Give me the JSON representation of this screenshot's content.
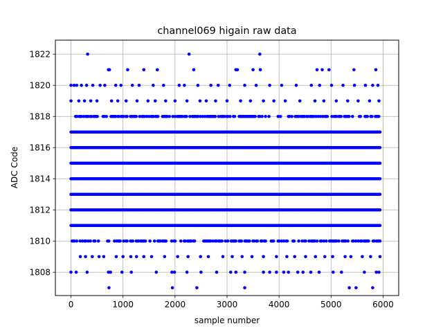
{
  "chart_data": {
    "type": "scatter",
    "title": "channel069 higain raw data",
    "xlabel": "sample number",
    "ylabel": "ADC Code",
    "xlim": [
      -300,
      6300
    ],
    "ylim": [
      1806.5,
      1822.9
    ],
    "xticks": [
      0,
      1000,
      2000,
      3000,
      4000,
      5000,
      6000
    ],
    "yticks": [
      1808,
      1810,
      1812,
      1814,
      1816,
      1818,
      1820,
      1822
    ],
    "grid": true,
    "marker_color": "#0000ff",
    "series": [
      {
        "dense_rows": [
          1811,
          1812,
          1813,
          1814,
          1815,
          1816,
          1817
        ],
        "dense_x_range": [
          0,
          5940
        ],
        "semi_dense_rows": [
          {
            "y": 1810,
            "density": 0.55
          },
          {
            "y": 1818,
            "density": 0.6
          }
        ],
        "sparse_points": [
          [
            320,
            1822
          ],
          [
            2270,
            1822
          ],
          [
            3630,
            1822
          ],
          [
            720,
            1821
          ],
          [
            740,
            1821
          ],
          [
            1090,
            1821
          ],
          [
            1400,
            1821
          ],
          [
            1660,
            1821
          ],
          [
            2360,
            1821
          ],
          [
            3170,
            1821
          ],
          [
            3200,
            1821
          ],
          [
            3500,
            1821
          ],
          [
            3640,
            1821
          ],
          [
            4730,
            1821
          ],
          [
            4830,
            1821
          ],
          [
            4960,
            1821
          ],
          [
            5440,
            1821
          ],
          [
            5860,
            1821
          ],
          [
            0,
            1820
          ],
          [
            60,
            1820
          ],
          [
            110,
            1820
          ],
          [
            200,
            1820
          ],
          [
            300,
            1820
          ],
          [
            420,
            1820
          ],
          [
            560,
            1820
          ],
          [
            650,
            1820
          ],
          [
            860,
            1820
          ],
          [
            960,
            1820
          ],
          [
            1180,
            1820
          ],
          [
            1310,
            1820
          ],
          [
            1580,
            1820
          ],
          [
            1780,
            1820
          ],
          [
            2080,
            1820
          ],
          [
            2180,
            1820
          ],
          [
            2440,
            1820
          ],
          [
            2690,
            1820
          ],
          [
            2830,
            1820
          ],
          [
            3050,
            1820
          ],
          [
            3340,
            1820
          ],
          [
            3560,
            1820
          ],
          [
            3820,
            1820
          ],
          [
            4050,
            1820
          ],
          [
            4330,
            1820
          ],
          [
            4620,
            1820
          ],
          [
            4780,
            1820
          ],
          [
            5010,
            1820
          ],
          [
            5230,
            1820
          ],
          [
            5450,
            1820
          ],
          [
            5660,
            1820
          ],
          [
            5800,
            1820
          ],
          [
            5900,
            1820
          ],
          [
            0,
            1819
          ],
          [
            150,
            1819
          ],
          [
            260,
            1819
          ],
          [
            380,
            1819
          ],
          [
            500,
            1819
          ],
          [
            780,
            1819
          ],
          [
            900,
            1819
          ],
          [
            1060,
            1819
          ],
          [
            1270,
            1819
          ],
          [
            1480,
            1819
          ],
          [
            1620,
            1819
          ],
          [
            1820,
            1819
          ],
          [
            2000,
            1819
          ],
          [
            2230,
            1819
          ],
          [
            2480,
            1819
          ],
          [
            2600,
            1819
          ],
          [
            2780,
            1819
          ],
          [
            3000,
            1819
          ],
          [
            3260,
            1819
          ],
          [
            3450,
            1819
          ],
          [
            3700,
            1819
          ],
          [
            3900,
            1819
          ],
          [
            4120,
            1819
          ],
          [
            4400,
            1819
          ],
          [
            4690,
            1819
          ],
          [
            4860,
            1819
          ],
          [
            5100,
            1819
          ],
          [
            5320,
            1819
          ],
          [
            5520,
            1819
          ],
          [
            5740,
            1819
          ],
          [
            5920,
            1819
          ],
          [
            180,
            1809
          ],
          [
            280,
            1809
          ],
          [
            410,
            1809
          ],
          [
            540,
            1809
          ],
          [
            630,
            1809
          ],
          [
            870,
            1809
          ],
          [
            1000,
            1809
          ],
          [
            1150,
            1809
          ],
          [
            1260,
            1809
          ],
          [
            1400,
            1809
          ],
          [
            1550,
            1809
          ],
          [
            1800,
            1809
          ],
          [
            2050,
            1809
          ],
          [
            2250,
            1809
          ],
          [
            2490,
            1809
          ],
          [
            2640,
            1809
          ],
          [
            2920,
            1809
          ],
          [
            3100,
            1809
          ],
          [
            3290,
            1809
          ],
          [
            3480,
            1809
          ],
          [
            3700,
            1809
          ],
          [
            3950,
            1809
          ],
          [
            4150,
            1809
          ],
          [
            4300,
            1809
          ],
          [
            4510,
            1809
          ],
          [
            4700,
            1809
          ],
          [
            4880,
            1809
          ],
          [
            5030,
            1809
          ],
          [
            5270,
            1809
          ],
          [
            5380,
            1809
          ],
          [
            5600,
            1809
          ],
          [
            5760,
            1809
          ],
          [
            5940,
            1809
          ],
          [
            0,
            1808
          ],
          [
            100,
            1808
          ],
          [
            310,
            1808
          ],
          [
            720,
            1808
          ],
          [
            760,
            1808
          ],
          [
            980,
            1808
          ],
          [
            1160,
            1808
          ],
          [
            1640,
            1808
          ],
          [
            1940,
            1808
          ],
          [
            1990,
            1808
          ],
          [
            2230,
            1808
          ],
          [
            2500,
            1808
          ],
          [
            2800,
            1808
          ],
          [
            3070,
            1808
          ],
          [
            3170,
            1808
          ],
          [
            3340,
            1808
          ],
          [
            3700,
            1808
          ],
          [
            3820,
            1808
          ],
          [
            3950,
            1808
          ],
          [
            4090,
            1808
          ],
          [
            4180,
            1808
          ],
          [
            4360,
            1808
          ],
          [
            4460,
            1808
          ],
          [
            4610,
            1808
          ],
          [
            4770,
            1808
          ],
          [
            5040,
            1808
          ],
          [
            5200,
            1808
          ],
          [
            5640,
            1808
          ],
          [
            5870,
            1808
          ],
          [
            5920,
            1808
          ],
          [
            730,
            1807
          ],
          [
            1950,
            1807
          ],
          [
            2420,
            1807
          ],
          [
            3340,
            1807
          ],
          [
            5350,
            1807
          ],
          [
            5480,
            1807
          ],
          [
            5800,
            1807
          ]
        ]
      }
    ]
  }
}
